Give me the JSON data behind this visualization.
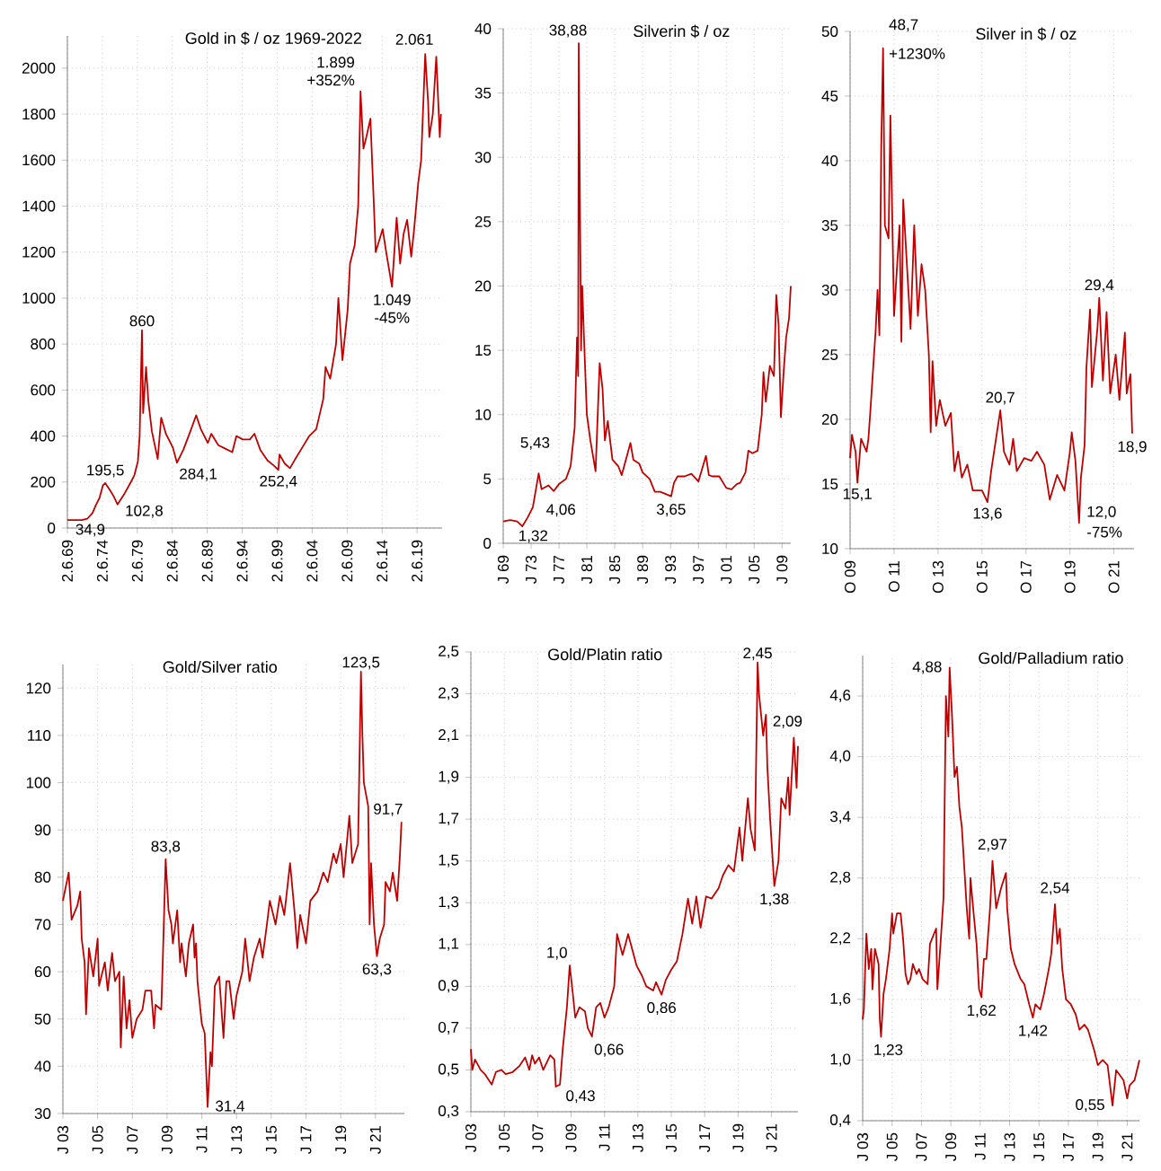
{
  "chart_data": [
    {
      "type": "line",
      "title": "Gold in $ / oz 1969-2022",
      "color": "#c00000",
      "grid": true,
      "x": [
        "1969-06-02",
        "1970-01",
        "1971-07",
        "1972-04",
        "1973-01",
        "1973-07",
        "1974-01",
        "1974-07",
        "1974-11",
        "1975-07",
        "1976-01",
        "1976-08",
        "1977-07",
        "1978-07",
        "1979-01",
        "1979-07",
        "1979-10",
        "1980-02",
        "1980-04",
        "1980-09",
        "1981-01",
        "1981-07",
        "1982-05",
        "1982-11",
        "1983-07",
        "1984-07",
        "1985-02",
        "1986-01",
        "1987-01",
        "1987-11",
        "1988-07",
        "1989-07",
        "1990-01",
        "1991-01",
        "1992-01",
        "1993-01",
        "1993-08",
        "1994-07",
        "1995-07",
        "1996-03",
        "1997-01",
        "1998-01",
        "1999-01",
        "1999-08",
        "1999-10",
        "2000-07",
        "2001-04",
        "2002-01",
        "2003-01",
        "2004-01",
        "2005-01",
        "2006-01",
        "2006-05",
        "2007-01",
        "2007-11",
        "2008-03",
        "2008-10",
        "2009-07",
        "2009-11",
        "2010-07",
        "2011-01",
        "2011-05",
        "2011-10",
        "2012-03",
        "2012-10",
        "2013-04",
        "2013-07",
        "2014-01",
        "2014-07",
        "2015-01",
        "2015-11",
        "2016-07",
        "2017-01",
        "2017-07",
        "2018-01",
        "2018-08",
        "2019-01",
        "2019-08",
        "2020-01",
        "2020-08",
        "2021-01",
        "2021-03",
        "2021-09",
        "2022-03",
        "2022-09",
        "2022-11"
      ],
      "values": [
        35,
        34.9,
        35,
        40,
        65,
        100,
        130,
        185,
        195.5,
        165,
        140,
        102.8,
        145,
        200,
        230,
        290,
        400,
        860,
        500,
        700,
        550,
        420,
        300,
        480,
        410,
        350,
        284.1,
        340,
        420,
        490,
        430,
        370,
        410,
        360,
        345,
        330,
        400,
        385,
        385,
        410,
        340,
        295,
        270,
        252.4,
        320,
        280,
        260,
        300,
        350,
        400,
        430,
        560,
        700,
        650,
        800,
        1000,
        730,
        950,
        1150,
        1230,
        1400,
        1899,
        1650,
        1700,
        1780,
        1400,
        1200,
        1250,
        1300,
        1200,
        1049,
        1350,
        1150,
        1280,
        1340,
        1180,
        1300,
        1500,
        1600,
        2061,
        1850,
        1700,
        1800,
        2050,
        1700,
        1800
      ],
      "xlim": [
        "1969-06-02",
        "2023-01"
      ],
      "ylim": [
        0,
        2140
      ],
      "xticks": [
        {
          "value": "1969-06-02",
          "label": "2.6.69"
        },
        {
          "value": "1974-06-02",
          "label": "2.6.74"
        },
        {
          "value": "1979-06-02",
          "label": "2.6.79"
        },
        {
          "value": "1984-06-02",
          "label": "2.6.84"
        },
        {
          "value": "1989-06-02",
          "label": "2.6.89"
        },
        {
          "value": "1994-06-02",
          "label": "2.6.94"
        },
        {
          "value": "1999-06-02",
          "label": "2.6.99"
        },
        {
          "value": "2004-06-02",
          "label": "2.6.04"
        },
        {
          "value": "2009-06-02",
          "label": "2.6.09"
        },
        {
          "value": "2014-06-02",
          "label": "2.6.14"
        },
        {
          "value": "2019-06-02",
          "label": "2.6.19"
        }
      ],
      "yticks": [
        0,
        200,
        400,
        600,
        800,
        1000,
        1200,
        1400,
        1600,
        1800,
        2000
      ],
      "annotations": [
        {
          "text": "34,9",
          "x": "1970-01",
          "y": 34.9
        },
        {
          "text": "195,5",
          "x": "1974-11",
          "y": 195.5
        },
        {
          "text": "102,8",
          "x": "1976-08",
          "y": 102.8
        },
        {
          "text": "860",
          "x": "1980-02",
          "y": 860
        },
        {
          "text": "284,1",
          "x": "1985-02",
          "y": 284.1
        },
        {
          "text": "252,4",
          "x": "1999-08",
          "y": 252.4
        },
        {
          "text": "1.899",
          "x": "2011-05",
          "y": 1899
        },
        {
          "text": "+352%",
          "x": "2011-05",
          "y": 1899
        },
        {
          "text": "1.049",
          "x": "2015-11",
          "y": 1049
        },
        {
          "text": "-45%",
          "x": "2015-11",
          "y": 1049
        },
        {
          "text": "2.061",
          "x": "2020-08",
          "y": 2061
        }
      ]
    },
    {
      "type": "line",
      "title": "Silverin $ / oz",
      "color": "#c00000",
      "grid": true,
      "x": [
        "1969-01",
        "1970-01",
        "1971-01",
        "1971-10",
        "1972-07",
        "1973-04",
        "1974-02",
        "1974-07",
        "1975-07",
        "1976-04",
        "1977-01",
        "1978-01",
        "1978-09",
        "1979-04",
        "1979-08",
        "1979-10",
        "1979-11",
        "1980-03",
        "1980-05",
        "1980-08",
        "1981-01",
        "1981-07",
        "1982-04",
        "1982-11",
        "1983-04",
        "1983-08",
        "1984-01",
        "1984-09",
        "1985-07",
        "1986-01",
        "1987-04",
        "1987-09",
        "1988-07",
        "1989-01",
        "1990-01",
        "1990-10",
        "1991-07",
        "1992-01",
        "1993-02",
        "1993-07",
        "1994-01",
        "1995-01",
        "1996-01",
        "1997-01",
        "1998-02",
        "1998-07",
        "1999-01",
        "2000-01",
        "2001-01",
        "2001-10",
        "2002-07",
        "2003-01",
        "2003-10",
        "2004-03",
        "2004-10",
        "2005-07",
        "2006-02",
        "2006-05",
        "2006-09",
        "2007-04",
        "2007-11",
        "2008-03",
        "2008-07",
        "2008-11",
        "2009-04",
        "2009-08",
        "2010-01",
        "2010-04"
      ],
      "values": [
        1.7,
        1.8,
        1.7,
        1.32,
        2.0,
        2.8,
        5.43,
        4.2,
        4.5,
        4.06,
        4.6,
        5.0,
        6.0,
        9,
        16,
        13,
        38.88,
        15,
        20,
        16,
        10,
        8,
        5.6,
        14,
        12,
        8,
        9.5,
        6.5,
        6.0,
        5.3,
        7.8,
        6.5,
        6.2,
        5.5,
        5.0,
        4.0,
        4.0,
        3.9,
        3.65,
        4.7,
        5.2,
        5.2,
        5.4,
        4.8,
        6.8,
        5.3,
        5.2,
        5.2,
        4.3,
        4.2,
        4.6,
        4.7,
        5.5,
        7.2,
        7.0,
        7.2,
        10.0,
        13.3,
        11,
        13.8,
        13.0,
        19.3,
        17,
        9.8,
        13.5,
        16,
        17.5,
        20.0
      ],
      "xlim": [
        "1969-01",
        "2010-04"
      ],
      "ylim": [
        0,
        40
      ],
      "xticks": [
        {
          "value": "1969-01",
          "label": "J 69"
        },
        {
          "value": "1973-01",
          "label": "J 73"
        },
        {
          "value": "1977-01",
          "label": "J 77"
        },
        {
          "value": "1981-01",
          "label": "J 81"
        },
        {
          "value": "1985-01",
          "label": "J 85"
        },
        {
          "value": "1989-01",
          "label": "J 89"
        },
        {
          "value": "1993-01",
          "label": "J 93"
        },
        {
          "value": "1997-01",
          "label": "J 97"
        },
        {
          "value": "2001-01",
          "label": "J 01"
        },
        {
          "value": "2005-01",
          "label": "J 05"
        },
        {
          "value": "2009-01",
          "label": "J 09"
        }
      ],
      "yticks": [
        0,
        5,
        10,
        15,
        20,
        25,
        30,
        35,
        40
      ],
      "annotations": [
        {
          "text": "38,88",
          "x": "1979-11",
          "y": 38.88
        },
        {
          "text": "5,43",
          "x": "1974-02",
          "y": 5.43
        },
        {
          "text": "1,32",
          "x": "1971-10",
          "y": 1.32
        },
        {
          "text": "4,06",
          "x": "1976-04",
          "y": 4.06
        },
        {
          "text": "3,65",
          "x": "1993-02",
          "y": 3.65
        }
      ]
    },
    {
      "type": "line",
      "title": "Silver in $ / oz",
      "color": "#c00000",
      "grid": true,
      "x": [
        "2009-10",
        "2009-11",
        "2010-01",
        "2010-02",
        "2010-04",
        "2010-07",
        "2010-08",
        "2010-09",
        "2010-12",
        "2011-01",
        "2011-02",
        "2011-03",
        "2011-04",
        "2011-05",
        "2011-07",
        "2011-08",
        "2011-10",
        "2012-01",
        "2012-02",
        "2012-03",
        "2012-05",
        "2012-07",
        "2012-09",
        "2012-11",
        "2013-01",
        "2013-03",
        "2013-05",
        "2013-06",
        "2013-07",
        "2013-09",
        "2013-11",
        "2014-02",
        "2014-05",
        "2014-07",
        "2014-09",
        "2014-11",
        "2015-02",
        "2015-05",
        "2015-10",
        "2016-01",
        "2016-03",
        "2016-08",
        "2016-10",
        "2017-01",
        "2017-03",
        "2017-05",
        "2017-09",
        "2018-01",
        "2018-04",
        "2018-08",
        "2018-11",
        "2019-03",
        "2019-07",
        "2019-10",
        "2019-11",
        "2020-01",
        "2020-03",
        "2020-04",
        "2020-06",
        "2020-07",
        "2020-09",
        "2020-10",
        "2021-01",
        "2021-02",
        "2021-04",
        "2021-06",
        "2021-08",
        "2021-11",
        "2022-01",
        "2022-04",
        "2022-05",
        "2022-07",
        "2022-08"
      ],
      "values": [
        17.0,
        18.8,
        17.5,
        15.1,
        18.5,
        17.5,
        18.5,
        20.5,
        27,
        30,
        26.5,
        41,
        48.7,
        35,
        34,
        43.5,
        28,
        35,
        26,
        37,
        32,
        27,
        35,
        28,
        32,
        30,
        25,
        19,
        24.5,
        19.5,
        21.5,
        19.5,
        20.5,
        16,
        17.5,
        15.5,
        16.5,
        14.5,
        14.5,
        13.6,
        16,
        20.7,
        17.5,
        16.5,
        18.5,
        16,
        17,
        16.8,
        17.5,
        16.5,
        13.8,
        15.7,
        14.5,
        17.5,
        19,
        16.8,
        12.0,
        15.5,
        18,
        24,
        28.5,
        22.5,
        27,
        29.4,
        23,
        28.3,
        22,
        25,
        21.5,
        26.7,
        22,
        23.5,
        18.9
      ],
      "xlim": [
        "2009-10",
        "2022-09"
      ],
      "ylim": [
        10,
        50
      ],
      "xticks": [
        {
          "value": "2009-10",
          "label": "O 09"
        },
        {
          "value": "2011-10",
          "label": "O 11"
        },
        {
          "value": "2013-10",
          "label": "O 13"
        },
        {
          "value": "2015-10",
          "label": "O 15"
        },
        {
          "value": "2017-10",
          "label": "O 17"
        },
        {
          "value": "2019-10",
          "label": "O 19"
        },
        {
          "value": "2021-10",
          "label": "O 21"
        }
      ],
      "yticks": [
        10,
        15,
        20,
        25,
        30,
        35,
        40,
        45,
        50
      ],
      "annotations": [
        {
          "text": "48,7",
          "x": "2011-04",
          "y": 48.7
        },
        {
          "text": "+1230%",
          "x": "2011-04",
          "y": 48.7
        },
        {
          "text": "15,1",
          "x": "2010-02",
          "y": 15.1
        },
        {
          "text": "13,6",
          "x": "2016-01",
          "y": 13.6
        },
        {
          "text": "20,7",
          "x": "2016-08",
          "y": 20.7
        },
        {
          "text": "29,4",
          "x": "2021-02",
          "y": 29.4
        },
        {
          "text": "12,0",
          "x": "2020-03",
          "y": 12.0
        },
        {
          "text": "-75%",
          "x": "2020-03",
          "y": 12.0
        },
        {
          "text": "18,9",
          "x": "2022-08",
          "y": 18.9
        }
      ]
    },
    {
      "type": "line",
      "title": "Gold/Silver ratio",
      "color": "#c00000",
      "grid": true,
      "x": [
        "2003-01",
        "2003-05",
        "2003-07",
        "2003-11",
        "2004-01",
        "2004-02",
        "2004-04",
        "2004-05",
        "2004-07",
        "2004-10",
        "2005-01",
        "2005-02",
        "2005-06",
        "2005-08",
        "2005-11",
        "2006-01",
        "2006-04",
        "2006-05",
        "2006-07",
        "2006-09",
        "2006-11",
        "2007-01",
        "2007-04",
        "2007-08",
        "2007-10",
        "2008-02",
        "2008-04",
        "2008-05",
        "2008-09",
        "2008-10",
        "2008-12",
        "2009-02",
        "2009-04",
        "2009-05",
        "2009-08",
        "2009-10",
        "2009-11",
        "2010-02",
        "2010-04",
        "2010-07",
        "2010-08",
        "2010-09",
        "2010-10",
        "2011-01",
        "2011-03",
        "2011-05",
        "2011-07",
        "2011-08",
        "2011-10",
        "2012-01",
        "2012-04",
        "2012-06",
        "2012-08",
        "2012-11",
        "2013-01",
        "2013-05",
        "2013-07",
        "2013-10",
        "2014-01",
        "2014-05",
        "2014-07",
        "2014-10",
        "2014-12",
        "2015-04",
        "2015-07",
        "2015-10",
        "2016-02",
        "2016-05",
        "2016-07",
        "2016-09",
        "2017-01",
        "2017-04",
        "2017-09",
        "2018-01",
        "2018-04",
        "2018-08",
        "2018-10",
        "2019-01",
        "2019-03",
        "2019-07",
        "2019-09",
        "2020-01",
        "2020-03",
        "2020-04",
        "2020-05",
        "2020-08",
        "2020-09",
        "2020-10",
        "2020-12",
        "2021-02",
        "2021-04",
        "2021-07",
        "2021-08",
        "2021-11",
        "2022-01",
        "2022-04",
        "2022-06",
        "2022-07"
      ],
      "values": [
        75,
        81,
        71,
        74,
        77,
        67,
        62,
        51,
        65,
        59,
        67,
        57,
        62,
        56,
        64,
        58,
        60,
        44,
        59,
        48,
        54,
        46,
        50,
        52,
        56,
        56,
        48,
        53,
        52,
        62,
        83.8,
        73,
        70,
        66,
        73,
        62,
        66,
        59,
        66,
        70,
        63,
        66,
        58,
        49,
        47,
        31.4,
        43,
        40,
        57,
        59,
        46,
        58,
        58,
        50,
        55,
        60,
        67,
        58,
        63,
        67,
        63,
        70,
        75,
        70,
        76,
        72,
        83,
        73,
        65,
        72,
        66,
        75,
        77,
        81,
        79,
        85,
        83,
        87,
        80,
        93,
        83,
        87,
        123.5,
        110,
        100,
        95,
        70,
        83,
        70,
        63.3,
        67,
        70,
        79,
        77,
        81,
        75,
        85,
        91.7
      ],
      "xlim": [
        "2003-01",
        "2022-09"
      ],
      "ylim": [
        30,
        125
      ],
      "xticks": [
        {
          "value": "2003-01",
          "label": "J 03"
        },
        {
          "value": "2005-01",
          "label": "J 05"
        },
        {
          "value": "2007-01",
          "label": "J 07"
        },
        {
          "value": "2009-01",
          "label": "J 09"
        },
        {
          "value": "2011-01",
          "label": "J 11"
        },
        {
          "value": "2013-01",
          "label": "J 13"
        },
        {
          "value": "2015-01",
          "label": "J 15"
        },
        {
          "value": "2017-01",
          "label": "J 17"
        },
        {
          "value": "2019-01",
          "label": "J 19"
        },
        {
          "value": "2021-01",
          "label": "J 21"
        }
      ],
      "yticks": [
        30,
        40,
        50,
        60,
        70,
        80,
        90,
        100,
        110,
        120
      ],
      "annotations": [
        {
          "text": "83,8",
          "x": "2008-12",
          "y": 83.8
        },
        {
          "text": "31,4",
          "x": "2011-05",
          "y": 31.4
        },
        {
          "text": "123,5",
          "x": "2020-03",
          "y": 123.5
        },
        {
          "text": "91,7",
          "x": "2022-07",
          "y": 91.7
        },
        {
          "text": "63,3",
          "x": "2021-02",
          "y": 63.3
        }
      ]
    },
    {
      "type": "line",
      "title": "Gold/Platin ratio",
      "color": "#c00000",
      "grid": true,
      "x": [
        "2003-01",
        "2003-02",
        "2003-04",
        "2003-08",
        "2003-11",
        "2004-04",
        "2004-07",
        "2004-11",
        "2005-02",
        "2005-07",
        "2005-12",
        "2006-04",
        "2006-07",
        "2006-09",
        "2006-11",
        "2007-02",
        "2007-05",
        "2007-10",
        "2008-01",
        "2008-02",
        "2008-05",
        "2008-07",
        "2008-10",
        "2008-12",
        "2009-02",
        "2009-04",
        "2009-07",
        "2009-11",
        "2010-01",
        "2010-04",
        "2010-07",
        "2010-10",
        "2011-01",
        "2011-04",
        "2011-08",
        "2011-10",
        "2012-02",
        "2012-06",
        "2012-10",
        "2012-12",
        "2013-04",
        "2013-07",
        "2013-12",
        "2014-02",
        "2014-06",
        "2014-09",
        "2015-01",
        "2015-05",
        "2015-09",
        "2016-01",
        "2016-04",
        "2016-07",
        "2016-10",
        "2017-02",
        "2017-06",
        "2017-11",
        "2018-02",
        "2018-06",
        "2018-10",
        "2019-02",
        "2019-04",
        "2019-08",
        "2019-10",
        "2020-01",
        "2020-03",
        "2020-04",
        "2020-07",
        "2020-09",
        "2020-10",
        "2020-12",
        "2021-03",
        "2021-06",
        "2021-08",
        "2021-11",
        "2022-01",
        "2022-02",
        "2022-05",
        "2022-07",
        "2022-08"
      ],
      "values": [
        0.6,
        0.5,
        0.55,
        0.5,
        0.48,
        0.43,
        0.49,
        0.5,
        0.48,
        0.49,
        0.52,
        0.56,
        0.5,
        0.57,
        0.53,
        0.56,
        0.5,
        0.57,
        0.55,
        0.42,
        0.43,
        0.6,
        0.8,
        1.0,
        0.88,
        0.75,
        0.8,
        0.78,
        0.7,
        0.66,
        0.8,
        0.82,
        0.75,
        0.8,
        0.9,
        1.15,
        1.05,
        1.15,
        1.05,
        1.0,
        0.95,
        0.9,
        0.88,
        0.92,
        0.86,
        0.93,
        0.98,
        1.02,
        1.15,
        1.32,
        1.2,
        1.33,
        1.18,
        1.33,
        1.32,
        1.37,
        1.43,
        1.48,
        1.45,
        1.66,
        1.5,
        1.8,
        1.65,
        1.55,
        2.45,
        2.3,
        2.1,
        2.2,
        1.95,
        1.7,
        1.38,
        1.5,
        1.8,
        1.75,
        1.9,
        1.72,
        2.09,
        1.85,
        2.05
      ],
      "xlim": [
        "2003-01",
        "2022-08"
      ],
      "ylim": [
        0.3,
        2.5
      ],
      "xticks": [
        {
          "value": "2003-01",
          "label": "J 03"
        },
        {
          "value": "2005-01",
          "label": "J 05"
        },
        {
          "value": "2007-01",
          "label": "J 07"
        },
        {
          "value": "2009-01",
          "label": "J 09"
        },
        {
          "value": "2011-01",
          "label": "J 11"
        },
        {
          "value": "2013-01",
          "label": "J 13"
        },
        {
          "value": "2015-01",
          "label": "J 15"
        },
        {
          "value": "2017-01",
          "label": "J 17"
        },
        {
          "value": "2019-01",
          "label": "J 19"
        },
        {
          "value": "2021-01",
          "label": "J 21"
        }
      ],
      "yticks": [
        {
          "value": 0.3,
          "label": "0,3"
        },
        {
          "value": 0.5,
          "label": "0,5"
        },
        {
          "value": 0.7,
          "label": "0,7"
        },
        {
          "value": 0.9,
          "label": "0,9"
        },
        {
          "value": 1.1,
          "label": "1,1"
        },
        {
          "value": 1.3,
          "label": "1,3"
        },
        {
          "value": 1.5,
          "label": "1,5"
        },
        {
          "value": 1.7,
          "label": "1,7"
        },
        {
          "value": 1.9,
          "label": "1,9"
        },
        {
          "value": 2.1,
          "label": "2,1"
        },
        {
          "value": 2.3,
          "label": "2,3"
        },
        {
          "value": 2.5,
          "label": "2,5"
        }
      ],
      "annotations": [
        {
          "text": "1,0",
          "x": "2008-12",
          "y": 1.0
        },
        {
          "text": "0,43",
          "x": "2008-05",
          "y": 0.43
        },
        {
          "text": "0,66",
          "x": "2010-04",
          "y": 0.66
        },
        {
          "text": "0,86",
          "x": "2014-06",
          "y": 0.86
        },
        {
          "text": "2,45",
          "x": "2020-03",
          "y": 2.45
        },
        {
          "text": "2,09",
          "x": "2022-05",
          "y": 2.09
        },
        {
          "text": "1,38",
          "x": "2021-03",
          "y": 1.38
        }
      ]
    },
    {
      "type": "line",
      "title": "Gold/Palladium ratio",
      "color": "#c00000",
      "grid": true,
      "x": [
        "2003-01",
        "2003-02",
        "2003-04",
        "2003-06",
        "2003-08",
        "2003-09",
        "2003-11",
        "2004-02",
        "2004-03",
        "2004-04",
        "2004-06",
        "2004-08",
        "2004-11",
        "2005-01",
        "2005-02",
        "2005-05",
        "2005-08",
        "2005-10",
        "2005-12",
        "2006-02",
        "2006-04",
        "2006-06",
        "2006-09",
        "2006-11",
        "2007-02",
        "2007-06",
        "2007-08",
        "2008-01",
        "2008-02",
        "2008-04",
        "2008-07",
        "2008-09",
        "2008-11",
        "2008-12",
        "2009-02",
        "2009-04",
        "2009-06",
        "2009-08",
        "2009-10",
        "2009-12",
        "2010-02",
        "2010-04",
        "2010-05",
        "2010-08",
        "2010-10",
        "2010-12",
        "2011-02",
        "2011-04",
        "2011-06",
        "2011-09",
        "2011-11",
        "2012-02",
        "2012-06",
        "2012-10",
        "2012-11",
        "2013-02",
        "2013-05",
        "2013-10",
        "2014-01",
        "2014-05",
        "2014-08",
        "2014-10",
        "2015-02",
        "2015-05",
        "2015-09",
        "2015-11",
        "2016-02",
        "2016-04",
        "2016-06",
        "2016-08",
        "2016-11",
        "2017-03",
        "2017-07",
        "2017-10",
        "2018-02",
        "2018-05",
        "2018-10",
        "2019-01",
        "2019-05",
        "2019-09",
        "2020-01",
        "2020-04",
        "2020-07",
        "2020-10",
        "2021-01",
        "2021-03",
        "2021-07",
        "2021-10",
        "2021-11"
      ],
      "values": [
        1.4,
        1.5,
        2.25,
        1.9,
        2.1,
        1.7,
        2.1,
        1.95,
        1.4,
        1.23,
        1.65,
        1.8,
        2.1,
        2.45,
        2.25,
        2.45,
        2.45,
        2.2,
        1.85,
        1.75,
        1.8,
        1.95,
        1.85,
        1.9,
        1.8,
        1.75,
        2.15,
        2.3,
        1.7,
        2.05,
        2.6,
        4.6,
        4.2,
        4.88,
        4.4,
        3.8,
        3.9,
        3.5,
        3.3,
        2.9,
        2.5,
        2.2,
        2.8,
        2.4,
        2.15,
        1.7,
        1.62,
        2.0,
        2.0,
        2.5,
        2.97,
        2.5,
        2.7,
        2.85,
        2.5,
        2.1,
        1.95,
        1.8,
        1.75,
        1.55,
        1.42,
        1.55,
        1.5,
        1.65,
        1.9,
        2.05,
        2.54,
        2.15,
        2.3,
        1.9,
        1.6,
        1.55,
        1.45,
        1.3,
        1.35,
        1.3,
        1.1,
        0.95,
        1.0,
        0.95,
        0.55,
        0.9,
        0.85,
        0.8,
        0.62,
        0.75,
        0.8,
        0.95,
        1.0
      ],
      "xlim": [
        "2003-01",
        "2021-11"
      ],
      "ylim": [
        0.4,
        5.0
      ],
      "xticks": [
        {
          "value": "2003-01",
          "label": "J 03"
        },
        {
          "value": "2005-01",
          "label": "J 05"
        },
        {
          "value": "2007-01",
          "label": "J 07"
        },
        {
          "value": "2009-01",
          "label": "J 09"
        },
        {
          "value": "2011-01",
          "label": "J 11"
        },
        {
          "value": "2013-01",
          "label": "J 13"
        },
        {
          "value": "2015-01",
          "label": "J 15"
        },
        {
          "value": "2017-01",
          "label": "J 17"
        },
        {
          "value": "2019-01",
          "label": "J 19"
        },
        {
          "value": "2021-01",
          "label": "J 21"
        }
      ],
      "yticks": [
        {
          "value": 0.4,
          "label": "0,4"
        },
        {
          "value": 1.0,
          "label": "1,0"
        },
        {
          "value": 1.6,
          "label": "1,6"
        },
        {
          "value": 2.2,
          "label": "2,2"
        },
        {
          "value": 2.8,
          "label": "2,8"
        },
        {
          "value": 3.4,
          "label": "3,4"
        },
        {
          "value": 4.0,
          "label": "4,0"
        },
        {
          "value": 4.6,
          "label": "4,6"
        }
      ],
      "annotations": [
        {
          "text": "4,88",
          "x": "2008-12",
          "y": 4.88
        },
        {
          "text": "1,23",
          "x": "2004-04",
          "y": 1.23
        },
        {
          "text": "1,62",
          "x": "2011-02",
          "y": 1.62
        },
        {
          "text": "2,97",
          "x": "2011-11",
          "y": 2.97
        },
        {
          "text": "2,54",
          "x": "2016-02",
          "y": 2.54
        },
        {
          "text": "1,42",
          "x": "2014-08",
          "y": 1.42
        },
        {
          "text": "0,55",
          "x": "2020-01",
          "y": 0.55
        }
      ]
    }
  ]
}
